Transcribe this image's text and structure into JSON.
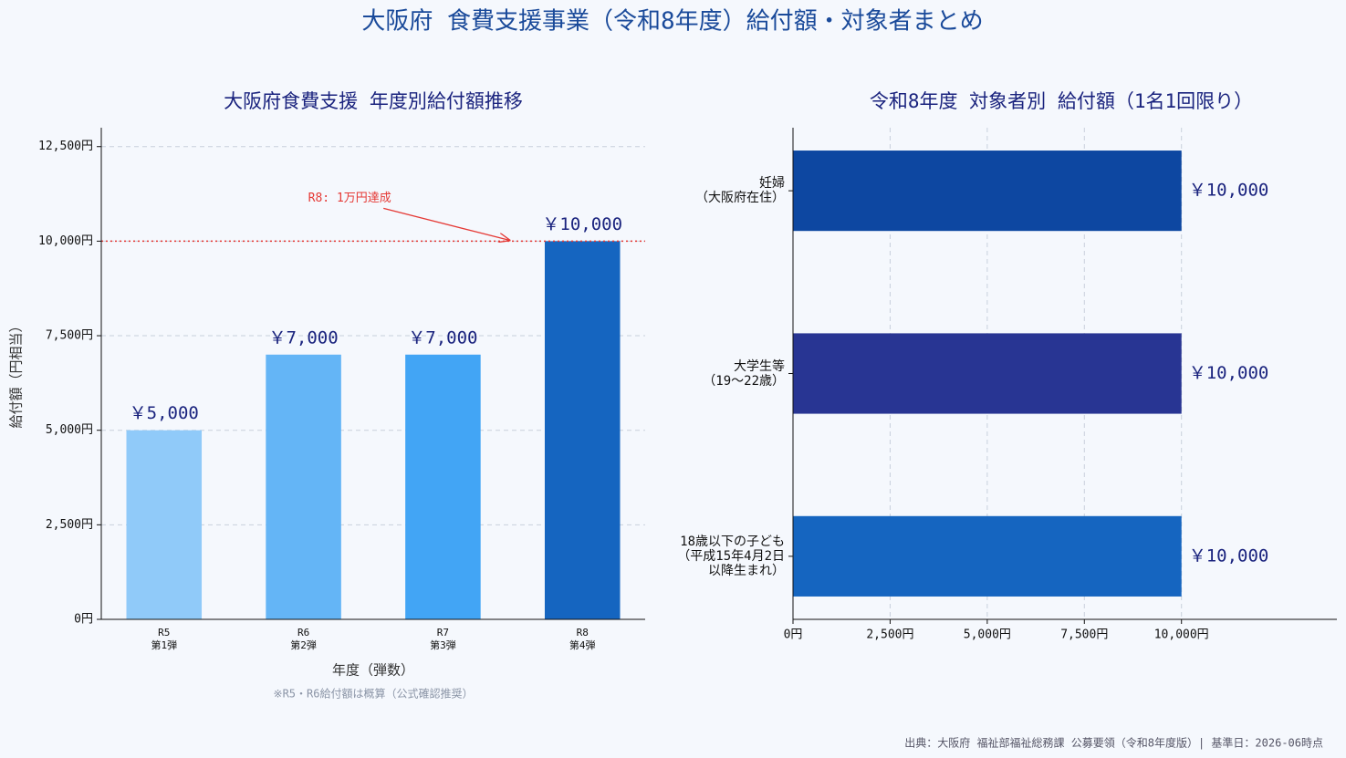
{
  "title": "大阪府 食費支援事業（令和8年度）給付額・対象者まとめ",
  "source": "出典：大阪府 福祉部福祉総務課 公募要領（令和8年度版）| 基準日：2026-06時点",
  "chart_data": [
    {
      "type": "bar",
      "title": "大阪府食費支援 年度別給付額推移",
      "categories": [
        "R5\n第1弾",
        "R6\n第2弾",
        "R7\n第3弾",
        "R8\n第4弾"
      ],
      "values": [
        5000,
        7000,
        7000,
        10000
      ],
      "value_labels": [
        "￥5,000",
        "￥7,000",
        "￥7,000",
        "￥10,000"
      ],
      "colors": [
        "#90caf9",
        "#64b5f6",
        "#42a5f5",
        "#1565c0"
      ],
      "xlabel": "年度（弾数）",
      "ylabel": "給付額（円相当）",
      "note": "※R5・R6給付額は概算（公式確認推奨）",
      "ylim": [
        0,
        13000
      ],
      "yticks": [
        {
          "value": 0,
          "label": "0円"
        },
        {
          "value": 2500,
          "label": "2,500円"
        },
        {
          "value": 5000,
          "label": "5,000円"
        },
        {
          "value": 7500,
          "label": "7,500円"
        },
        {
          "value": 10000,
          "label": "10,000円"
        },
        {
          "value": 12500,
          "label": "12,500円"
        }
      ],
      "grid": true,
      "reference_line": {
        "value": 10000,
        "color": "#e53935"
      },
      "annotation": "R8: 1万円達成"
    },
    {
      "type": "hbar",
      "title": "令和8年度 対象者別 給付額（1名1回限り）",
      "categories": [
        "妊婦\n（大阪府在住）",
        "大学生等\n（19〜22歳）",
        "18歳以下の子ども\n（平成15年4月2日\n以降生まれ）"
      ],
      "values": [
        10000,
        10000,
        10000
      ],
      "value_labels": [
        "￥10,000",
        "￥10,000",
        "￥10,000"
      ],
      "colors": [
        "#0d47a1",
        "#283593",
        "#1565c0"
      ],
      "xlim": [
        0,
        14000
      ],
      "xticks": [
        {
          "value": 0,
          "label": "0円"
        },
        {
          "value": 2500,
          "label": "2,500円"
        },
        {
          "value": 5000,
          "label": "5,000円"
        },
        {
          "value": 7500,
          "label": "7,500円"
        },
        {
          "value": 10000,
          "label": "10,000円"
        }
      ],
      "grid": true
    }
  ]
}
